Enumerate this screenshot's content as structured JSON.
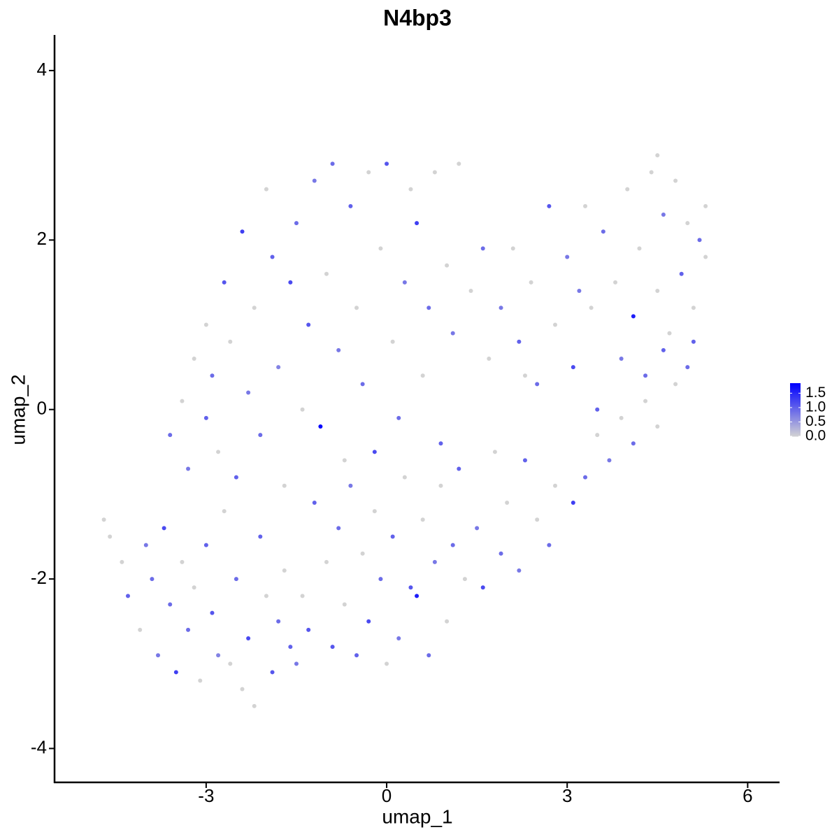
{
  "chart_data": {
    "type": "scatter",
    "title": "N4bp3",
    "x_label": "umap_1",
    "y_label": "umap_2",
    "xlim": [
      -5.52,
      6.53
    ],
    "ylim": [
      -4.4,
      4.42
    ],
    "xticks": [
      -3,
      0,
      3,
      6
    ],
    "yticks": [
      -4,
      -2,
      0,
      2,
      4
    ],
    "color_low": "#d3d3d3",
    "color_high": "#0000ff",
    "colorlim": [
      0,
      1.85
    ],
    "colorticks": [
      {
        "value": 0,
        "label": "0.0"
      },
      {
        "value": 0.5,
        "label": "0.5"
      },
      {
        "value": 1,
        "label": "1.0"
      },
      {
        "value": 1.5,
        "label": "1.5"
      }
    ],
    "x": [
      -4.7,
      -4.6,
      -4.4,
      -4.3,
      -4.1,
      -4.0,
      -3.9,
      -3.8,
      -3.7,
      -3.6,
      -3.5,
      -3.4,
      -3.3,
      -3.2,
      -3.1,
      -3.0,
      -2.9,
      -2.8,
      -2.7,
      -2.6,
      -2.5,
      -2.4,
      -2.3,
      -2.2,
      -2.1,
      -2.0,
      -1.9,
      -1.8,
      -1.7,
      -1.6,
      -1.5,
      -1.4,
      -1.3,
      -3.6,
      -3.4,
      -3.3,
      -3.2,
      -3.0,
      -3.0,
      -2.9,
      -2.8,
      -2.7,
      -2.6,
      -2.5,
      -2.4,
      -2.3,
      -2.2,
      -2.1,
      -2.0,
      -1.9,
      -1.8,
      -1.7,
      -1.6,
      -1.5,
      -1.4,
      -1.3,
      -1.2,
      -1.1,
      -1.0,
      -0.9,
      -0.8,
      -0.7,
      -0.6,
      -0.5,
      -0.4,
      -0.3,
      -0.2,
      -0.1,
      0.0,
      0.1,
      0.2,
      0.3,
      0.4,
      0.5,
      0.6,
      0.7,
      0.8,
      0.9,
      1.0,
      1.2,
      1.1,
      -1.2,
      -1.0,
      -0.9,
      -0.8,
      -0.7,
      -0.6,
      -0.5,
      -0.4,
      -0.3,
      -0.2,
      -0.1,
      0.0,
      0.1,
      0.2,
      0.3,
      0.4,
      0.5,
      0.6,
      0.7,
      0.8,
      0.9,
      1.0,
      1.1,
      1.2,
      1.3,
      1.5,
      1.6,
      1.8,
      1.9,
      2.0,
      2.2,
      2.3,
      2.5,
      2.7,
      2.8,
      3.1,
      3.3,
      3.5,
      3.7,
      3.9,
      4.1,
      4.3,
      4.5,
      4.8,
      5.0,
      4.6,
      1.4,
      1.6,
      1.7,
      1.9,
      2.1,
      2.2,
      2.4,
      2.5,
      2.7,
      2.8,
      3.0,
      3.1,
      3.3,
      3.4,
      3.5,
      3.6,
      3.8,
      3.9,
      4.0,
      4.1,
      4.2,
      4.3,
      4.4,
      4.5,
      4.6,
      4.7,
      4.8,
      4.9,
      5.0,
      5.1,
      5.2,
      5.3,
      5.3,
      4.5,
      5.1,
      2.3,
      3.2
    ],
    "y": [
      -1.3,
      -1.5,
      -1.8,
      -2.2,
      -2.6,
      -1.6,
      -2.0,
      -2.9,
      -1.4,
      -2.3,
      -3.1,
      -1.8,
      -2.6,
      -2.1,
      -3.2,
      -1.6,
      -2.4,
      -2.9,
      -1.2,
      -3.0,
      -2.0,
      -3.3,
      -2.7,
      -3.5,
      -1.5,
      -2.2,
      -3.1,
      -2.5,
      -1.9,
      -2.8,
      -3.0,
      -2.2,
      -2.6,
      -0.3,
      0.1,
      -0.7,
      0.6,
      -0.1,
      1.0,
      0.4,
      -0.5,
      1.5,
      0.8,
      -0.8,
      2.1,
      0.2,
      1.2,
      -0.3,
      2.6,
      1.8,
      0.5,
      -0.9,
      1.5,
      2.2,
      0.0,
      1.0,
      2.7,
      -0.2,
      1.6,
      2.9,
      0.7,
      -0.6,
      2.4,
      1.2,
      0.3,
      2.8,
      -0.5,
      1.9,
      2.9,
      0.8,
      -0.1,
      1.5,
      2.6,
      2.2,
      0.4,
      1.2,
      2.8,
      -0.4,
      1.7,
      2.9,
      0.9,
      -1.1,
      -1.8,
      -2.8,
      -1.4,
      -2.3,
      -0.9,
      -2.9,
      -1.7,
      -2.5,
      -1.2,
      -2.0,
      -3.0,
      -1.5,
      -2.7,
      -0.8,
      -2.1,
      -2.2,
      -1.3,
      -2.9,
      -1.8,
      -0.9,
      -2.5,
      -1.6,
      -0.7,
      -2.0,
      -1.4,
      -2.1,
      -0.5,
      -1.7,
      -1.1,
      -1.9,
      -0.6,
      -1.3,
      -1.6,
      -0.9,
      -1.1,
      -0.8,
      -0.3,
      -0.6,
      -0.1,
      -0.4,
      0.1,
      -0.2,
      0.3,
      0.5,
      0.7,
      1.4,
      1.9,
      0.6,
      1.2,
      1.9,
      0.8,
      1.5,
      0.3,
      2.4,
      1.0,
      1.8,
      0.5,
      2.4,
      1.2,
      0.0,
      2.1,
      1.5,
      0.6,
      2.6,
      1.1,
      1.9,
      0.4,
      2.8,
      1.4,
      2.3,
      0.9,
      2.7,
      1.6,
      2.2,
      1.2,
      2.0,
      1.8,
      2.4,
      3.0,
      0.8,
      0.4,
      1.4
    ],
    "expression": [
      0,
      0,
      0,
      1.0,
      0,
      0.8,
      0.9,
      0.8,
      1.2,
      0.9,
      1.3,
      0,
      0.9,
      0,
      0,
      1.0,
      1.1,
      0.7,
      0,
      0,
      0.9,
      0,
      1.2,
      0,
      1.0,
      0,
      1.1,
      0.9,
      0,
      1.0,
      0.8,
      0,
      1.1,
      0.9,
      0,
      0.8,
      0,
      1.0,
      0,
      0.9,
      0,
      1.1,
      0,
      1.0,
      1.3,
      0.8,
      0,
      0.9,
      0,
      1.0,
      0.7,
      0,
      1.2,
      0.9,
      0,
      1.1,
      0.8,
      1.8,
      0,
      0.9,
      0.8,
      0,
      1.0,
      0,
      0.9,
      0,
      1.2,
      0,
      1.1,
      0,
      0.9,
      0.8,
      0,
      1.3,
      0,
      0.9,
      0,
      1.0,
      0,
      0,
      0.8,
      1.0,
      0,
      1.1,
      0.9,
      0,
      0.8,
      1.0,
      0,
      1.2,
      0,
      0.9,
      0,
      1.0,
      0.8,
      0,
      1.1,
      1.6,
      0,
      0.9,
      0.8,
      0,
      0,
      0.9,
      1.0,
      0,
      0.8,
      1.2,
      0,
      0.9,
      0,
      0.8,
      1.0,
      0,
      0.9,
      0,
      1.3,
      0.9,
      0,
      0.8,
      0,
      0.9,
      0,
      0,
      0,
      0.9,
      1.0,
      0,
      0.9,
      0,
      0.8,
      0,
      1.0,
      0,
      0.9,
      1.1,
      0,
      0.8,
      1.2,
      0,
      0,
      1.0,
      0.9,
      0,
      0.8,
      0,
      1.6,
      0,
      0.9,
      0,
      0,
      0.8,
      0,
      0,
      1.0,
      0,
      0,
      0.9,
      0,
      0,
      0,
      1.0,
      0,
      0.8
    ]
  }
}
